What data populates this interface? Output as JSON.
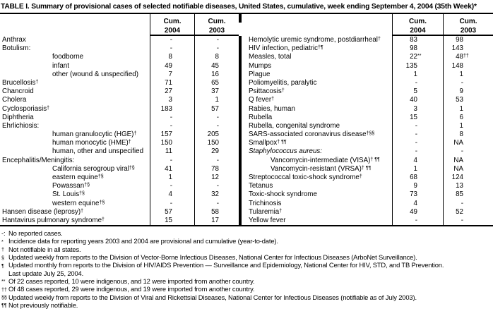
{
  "title": "TABLE I. Summary of provisional cases of selected notifiable diseases, United States, cumulative, week ending September 4, 2004 (35th Week)*",
  "header": {
    "cum": "Cum.",
    "y2004": "2004",
    "y2003": "2003"
  },
  "left_rows": [
    {
      "name": "Anthrax",
      "sup": "",
      "indent": false,
      "italic": false,
      "v2004": "-",
      "v2003": "-"
    },
    {
      "name": "Botulism:",
      "sup": "",
      "indent": false,
      "italic": false,
      "v2004": "-",
      "v2003": "-"
    },
    {
      "name": "foodborne",
      "sup": "",
      "indent": true,
      "italic": false,
      "v2004": "8",
      "v2003": "8"
    },
    {
      "name": "infant",
      "sup": "",
      "indent": true,
      "italic": false,
      "v2004": "49",
      "v2003": "45"
    },
    {
      "name": "other (wound & unspecified)",
      "sup": "",
      "indent": true,
      "italic": false,
      "v2004": "7",
      "v2003": "16"
    },
    {
      "name": "Brucellosis",
      "sup": "†",
      "indent": false,
      "italic": false,
      "v2004": "71",
      "v2003": "65"
    },
    {
      "name": "Chancroid",
      "sup": "",
      "indent": false,
      "italic": false,
      "v2004": "27",
      "v2003": "37"
    },
    {
      "name": "Cholera",
      "sup": "",
      "indent": false,
      "italic": false,
      "v2004": "3",
      "v2003": "1"
    },
    {
      "name": "Cyclosporiasis",
      "sup": "†",
      "indent": false,
      "italic": false,
      "v2004": "183",
      "v2003": "57"
    },
    {
      "name": "Diphtheria",
      "sup": "",
      "indent": false,
      "italic": false,
      "v2004": "-",
      "v2003": "-"
    },
    {
      "name": "Ehrlichiosis:",
      "sup": "",
      "indent": false,
      "italic": false,
      "v2004": "-",
      "v2003": "-"
    },
    {
      "name": "human granulocytic (HGE)",
      "sup": "†",
      "indent": true,
      "italic": false,
      "v2004": "157",
      "v2003": "205"
    },
    {
      "name": "human monocytic (HME)",
      "sup": "†",
      "indent": true,
      "italic": false,
      "v2004": "150",
      "v2003": "150"
    },
    {
      "name": "human, other and unspecified",
      "sup": "",
      "indent": true,
      "italic": false,
      "v2004": "11",
      "v2003": "29"
    },
    {
      "name": "Encephalitis/Meningitis:",
      "sup": "",
      "indent": false,
      "italic": false,
      "v2004": "-",
      "v2003": "-"
    },
    {
      "name": "California serogroup viral",
      "sup": "†§",
      "indent": true,
      "italic": false,
      "v2004": "41",
      "v2003": "78"
    },
    {
      "name": "eastern equine",
      "sup": "†§",
      "indent": true,
      "italic": false,
      "v2004": "1",
      "v2003": "12"
    },
    {
      "name": "Powassan",
      "sup": "†§",
      "indent": true,
      "italic": false,
      "v2004": "-",
      "v2003": "-"
    },
    {
      "name": "St. Louis",
      "sup": "†§",
      "indent": true,
      "italic": false,
      "v2004": "4",
      "v2003": "32"
    },
    {
      "name": "western equine",
      "sup": "†§",
      "indent": true,
      "italic": false,
      "v2004": "-",
      "v2003": "-"
    },
    {
      "name": "Hansen disease (leprosy)",
      "sup": "†",
      "indent": false,
      "italic": false,
      "v2004": "57",
      "v2003": "58"
    },
    {
      "name": "Hantavirus pulmonary syndrome",
      "sup": "†",
      "indent": false,
      "italic": false,
      "v2004": "15",
      "v2003": "17"
    }
  ],
  "right_rows": [
    {
      "name": "Hemolytic uremic syndrome, postdiarrheal",
      "sup": "†",
      "indent": false,
      "italic": false,
      "v2004": "83",
      "v2003": "98"
    },
    {
      "name": "HIV infection, pediatric",
      "sup": "†¶",
      "indent": false,
      "italic": false,
      "v2004": "98",
      "v2003": "143"
    },
    {
      "name": "Measles, total",
      "sup": "",
      "indent": false,
      "italic": false,
      "v2004": "22",
      "v2004_sup": "**",
      "v2003": "48",
      "v2003_sup": "††"
    },
    {
      "name": "Mumps",
      "sup": "",
      "indent": false,
      "italic": false,
      "v2004": "135",
      "v2003": "148"
    },
    {
      "name": "Plague",
      "sup": "",
      "indent": false,
      "italic": false,
      "v2004": "1",
      "v2003": "1"
    },
    {
      "name": "Poliomyelitis, paralytic",
      "sup": "",
      "indent": false,
      "italic": false,
      "v2004": "-",
      "v2003": "-"
    },
    {
      "name": "Psittacosis",
      "sup": "†",
      "indent": false,
      "italic": false,
      "v2004": "5",
      "v2003": "9"
    },
    {
      "name": "Q fever",
      "sup": "†",
      "indent": false,
      "italic": false,
      "v2004": "40",
      "v2003": "53"
    },
    {
      "name": "Rabies, human",
      "sup": "",
      "indent": false,
      "italic": false,
      "v2004": "3",
      "v2003": "1"
    },
    {
      "name": "Rubella",
      "sup": "",
      "indent": false,
      "italic": false,
      "v2004": "15",
      "v2003": "6"
    },
    {
      "name": "Rubella, congenital syndrome",
      "sup": "",
      "indent": false,
      "italic": false,
      "v2004": "-",
      "v2003": "1"
    },
    {
      "name": "SARS-associated coronavirus disease",
      "sup": "†§§",
      "indent": false,
      "italic": false,
      "v2004": "-",
      "v2003": "8"
    },
    {
      "name": "Smallpox",
      "sup": "† ¶¶",
      "indent": false,
      "italic": false,
      "v2004": "-",
      "v2003": "NA"
    },
    {
      "name": "Staphylococcus aureus:",
      "sup": "",
      "indent": false,
      "italic": true,
      "v2004": "-",
      "v2003": "-"
    },
    {
      "name": "Vancomycin-intermediate (VISA)",
      "sup": "† ¶¶",
      "indent": true,
      "italic": false,
      "v2004": "4",
      "v2003": "NA"
    },
    {
      "name": "Vancomycin-resistant (VRSA)",
      "sup": "† ¶¶",
      "indent": true,
      "italic": false,
      "v2004": "1",
      "v2003": "NA"
    },
    {
      "name": "Streptococcal toxic-shock syndrome",
      "sup": "†",
      "indent": false,
      "italic": false,
      "v2004": "68",
      "v2003": "124"
    },
    {
      "name": "Tetanus",
      "sup": "",
      "indent": false,
      "italic": false,
      "v2004": "9",
      "v2003": "13"
    },
    {
      "name": "Toxic-shock syndrome",
      "sup": "",
      "indent": false,
      "italic": false,
      "v2004": "73",
      "v2003": "85"
    },
    {
      "name": "Trichinosis",
      "sup": "",
      "indent": false,
      "italic": false,
      "v2004": "4",
      "v2003": "-"
    },
    {
      "name": "Tularemia",
      "sup": "†",
      "indent": false,
      "italic": false,
      "v2004": "49",
      "v2003": "52"
    },
    {
      "name": "Yellow fever",
      "sup": "",
      "indent": false,
      "italic": false,
      "v2004": "-",
      "v2003": "-"
    }
  ],
  "footnotes": [
    {
      "marker": "-:",
      "superscript": false,
      "text": "No reported cases."
    },
    {
      "marker": "*",
      "superscript": true,
      "text": "Incidence data for reporting years 2003 and 2004 are provisional and cumulative (year-to-date)."
    },
    {
      "marker": "†",
      "superscript": true,
      "text": "Not notifiable in all states."
    },
    {
      "marker": "§",
      "superscript": true,
      "text": "Updated weekly from reports to the Division of Vector-Borne Infectious Diseases, National Center for Infectious Diseases (ArboNet Surveillance)."
    },
    {
      "marker": "¶",
      "superscript": true,
      "text": "Updated monthly from reports to the Division of HIV/AIDS Prevention — Surveillance and Epidemiology, National Center for HIV, STD, and TB Prevention."
    },
    {
      "marker": "",
      "superscript": false,
      "text": "Last update July 25, 2004."
    },
    {
      "marker": "**",
      "superscript": true,
      "text": "Of 22 cases reported, 10 were indigenous, and 12 were imported from another country."
    },
    {
      "marker": "††",
      "superscript": true,
      "text": "Of 48 cases reported, 29 were indigenous, and 19 were imported from another country."
    },
    {
      "marker": "§§",
      "superscript": true,
      "text": "Updated weekly from reports to the Division of Viral and Rickettsial Diseases, National Center for Infectious Diseases (notifiable as of July 2003)."
    },
    {
      "marker": "¶¶",
      "superscript": true,
      "text": "Not previously notifiable."
    }
  ]
}
